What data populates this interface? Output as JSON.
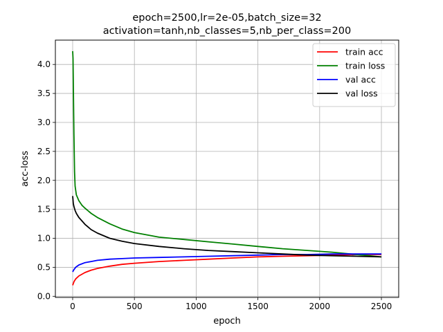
{
  "chart_data": {
    "type": "line",
    "title_lines": [
      "epoch=2500,lr=2e-05,batch_size=32",
      "activation=tanh,nb_classes=5,nb_per_class=200"
    ],
    "xlabel": "epoch",
    "ylabel": "acc-loss",
    "xlim": [
      -140,
      2640
    ],
    "ylim": [
      -0.02,
      4.42
    ],
    "xticks": [
      0,
      500,
      1000,
      1500,
      2000,
      2500
    ],
    "yticks": [
      0.0,
      0.5,
      1.0,
      1.5,
      2.0,
      2.5,
      3.0,
      3.5,
      4.0
    ],
    "grid": true,
    "legend_position": "top-right",
    "series": [
      {
        "name": "train acc",
        "color": "#ff0000",
        "x": [
          0,
          10,
          25,
          50,
          100,
          150,
          200,
          300,
          400,
          500,
          700,
          900,
          1100,
          1300,
          1500,
          1700,
          1900,
          2100,
          2300,
          2500
        ],
        "y": [
          0.19,
          0.25,
          0.3,
          0.35,
          0.41,
          0.45,
          0.48,
          0.52,
          0.55,
          0.57,
          0.6,
          0.62,
          0.64,
          0.66,
          0.68,
          0.69,
          0.7,
          0.71,
          0.72,
          0.72
        ]
      },
      {
        "name": "train loss",
        "color": "#008000",
        "x": [
          0,
          3,
          6,
          10,
          15,
          20,
          30,
          50,
          75,
          100,
          150,
          200,
          300,
          400,
          500,
          700,
          900,
          1100,
          1300,
          1500,
          1700,
          1900,
          2100,
          2300,
          2500
        ],
        "y": [
          4.23,
          4.1,
          3.6,
          2.8,
          2.15,
          1.9,
          1.75,
          1.65,
          1.57,
          1.52,
          1.43,
          1.36,
          1.25,
          1.16,
          1.1,
          1.02,
          0.98,
          0.94,
          0.9,
          0.86,
          0.82,
          0.79,
          0.76,
          0.72,
          0.68
        ]
      },
      {
        "name": "val acc",
        "color": "#0000ff",
        "x": [
          0,
          10,
          25,
          50,
          100,
          150,
          200,
          300,
          400,
          500,
          700,
          900,
          1100,
          1300,
          1500,
          1700,
          1900,
          2100,
          2300,
          2500
        ],
        "y": [
          0.42,
          0.46,
          0.5,
          0.54,
          0.58,
          0.6,
          0.62,
          0.64,
          0.65,
          0.66,
          0.67,
          0.68,
          0.69,
          0.7,
          0.71,
          0.72,
          0.72,
          0.73,
          0.73,
          0.73
        ]
      },
      {
        "name": "val loss",
        "color": "#000000",
        "x": [
          0,
          5,
          10,
          20,
          30,
          50,
          75,
          100,
          150,
          200,
          300,
          400,
          500,
          700,
          900,
          1100,
          1300,
          1500,
          1700,
          1900,
          2100,
          2300,
          2500
        ],
        "y": [
          1.73,
          1.6,
          1.55,
          1.48,
          1.43,
          1.36,
          1.3,
          1.24,
          1.15,
          1.09,
          1.0,
          0.95,
          0.91,
          0.86,
          0.82,
          0.79,
          0.77,
          0.75,
          0.73,
          0.71,
          0.7,
          0.69,
          0.68
        ]
      }
    ]
  }
}
